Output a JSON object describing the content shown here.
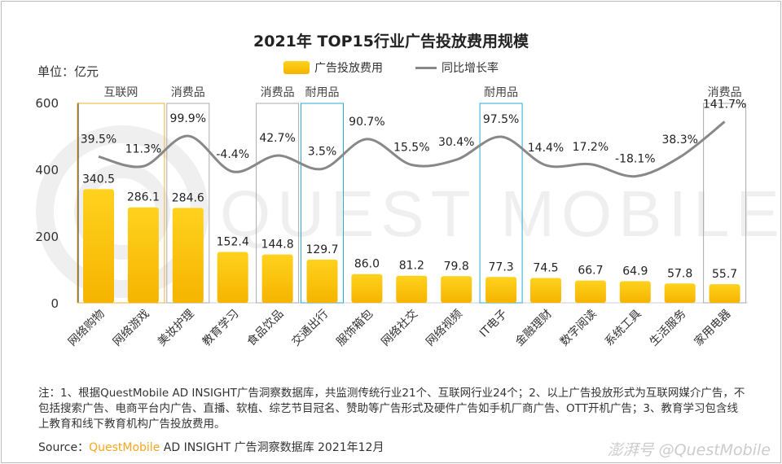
{
  "chart_data": {
    "type": "bar+line",
    "title": "2021年 TOP15行业广告投放费用规模",
    "unit_label": "单位：亿元",
    "categories": [
      "网络购物",
      "网络游戏",
      "美妆护理",
      "教育学习",
      "食品饮品",
      "交通出行",
      "服饰箱包",
      "网络社交",
      "网络视频",
      "IT电子",
      "金融理财",
      "数字阅读",
      "系统工具",
      "生活服务",
      "家用电器"
    ],
    "series": [
      {
        "name": "广告投放费用",
        "type": "bar",
        "values": [
          340.5,
          286.1,
          284.6,
          152.4,
          144.8,
          129.7,
          86.0,
          81.2,
          79.8,
          77.3,
          74.5,
          66.7,
          64.9,
          57.8,
          55.7
        ],
        "labels": [
          "340.5",
          "286.1",
          "284.6",
          "152.4",
          "144.8",
          "129.7",
          "86.0",
          "81.2",
          "79.8",
          "77.3",
          "74.5",
          "66.7",
          "64.9",
          "57.8",
          "55.7"
        ]
      },
      {
        "name": "同比增长率",
        "type": "line",
        "values": [
          39.5,
          11.3,
          99.9,
          -4.4,
          42.7,
          3.5,
          90.7,
          15.5,
          30.4,
          97.5,
          14.4,
          17.2,
          -18.1,
          38.3,
          141.7
        ],
        "labels": [
          "39.5%",
          "11.3%",
          "99.9%",
          "-4.4%",
          "42.7%",
          "3.5%",
          "90.7%",
          "15.5%",
          "30.4%",
          "97.5%",
          "14.4%",
          "17.2%",
          "-18.1%",
          "38.3%",
          "141.7%"
        ]
      }
    ],
    "ylim": [
      0,
      600
    ],
    "yticks": [
      "0",
      "200",
      "400",
      "600"
    ],
    "grid": false,
    "legend_position": "top-center",
    "groups": [
      {
        "label": "互联网",
        "from": 0,
        "to": 1,
        "color": "#f0b030"
      },
      {
        "label": "消费品",
        "from": 2,
        "to": 2,
        "color": "#aaaaaa"
      },
      {
        "label": "消费品",
        "from": 4,
        "to": 4,
        "color": "#aaaaaa"
      },
      {
        "label": "耐用品",
        "from": 5,
        "to": 5,
        "color": "#2aa8d8"
      },
      {
        "label": "耐用品",
        "from": 9,
        "to": 9,
        "color": "#2aa8d8"
      },
      {
        "label": "消费品",
        "from": 14,
        "to": 14,
        "color": "#aaaaaa"
      }
    ],
    "colors": {
      "bar_top": "#ffd21e",
      "bar_bottom": "#f5b400",
      "line": "#888888"
    }
  },
  "notes": "注：1、根据QuestMobile AD INSIGHT广告洞察数据库，共监测传统行业21个、互联网行业24个；2、以上广告投放形式为互联网媒介广告，不包括搜索广告、电商平台内广告、直播、软植、综艺节目冠名、赞助等广告形式及硬件广告如手机厂商广告、OTT开机广告；3、教育学习包含线上教育和线下教育机构广告投放费用。",
  "source": {
    "prefix": "Source：",
    "brand": "QuestMobile",
    "rest": " AD INSIGHT 广告洞察数据库 2021年12月"
  },
  "watermark": "QUEST MOBILE",
  "credit": "澎湃号 @QuestMobile"
}
